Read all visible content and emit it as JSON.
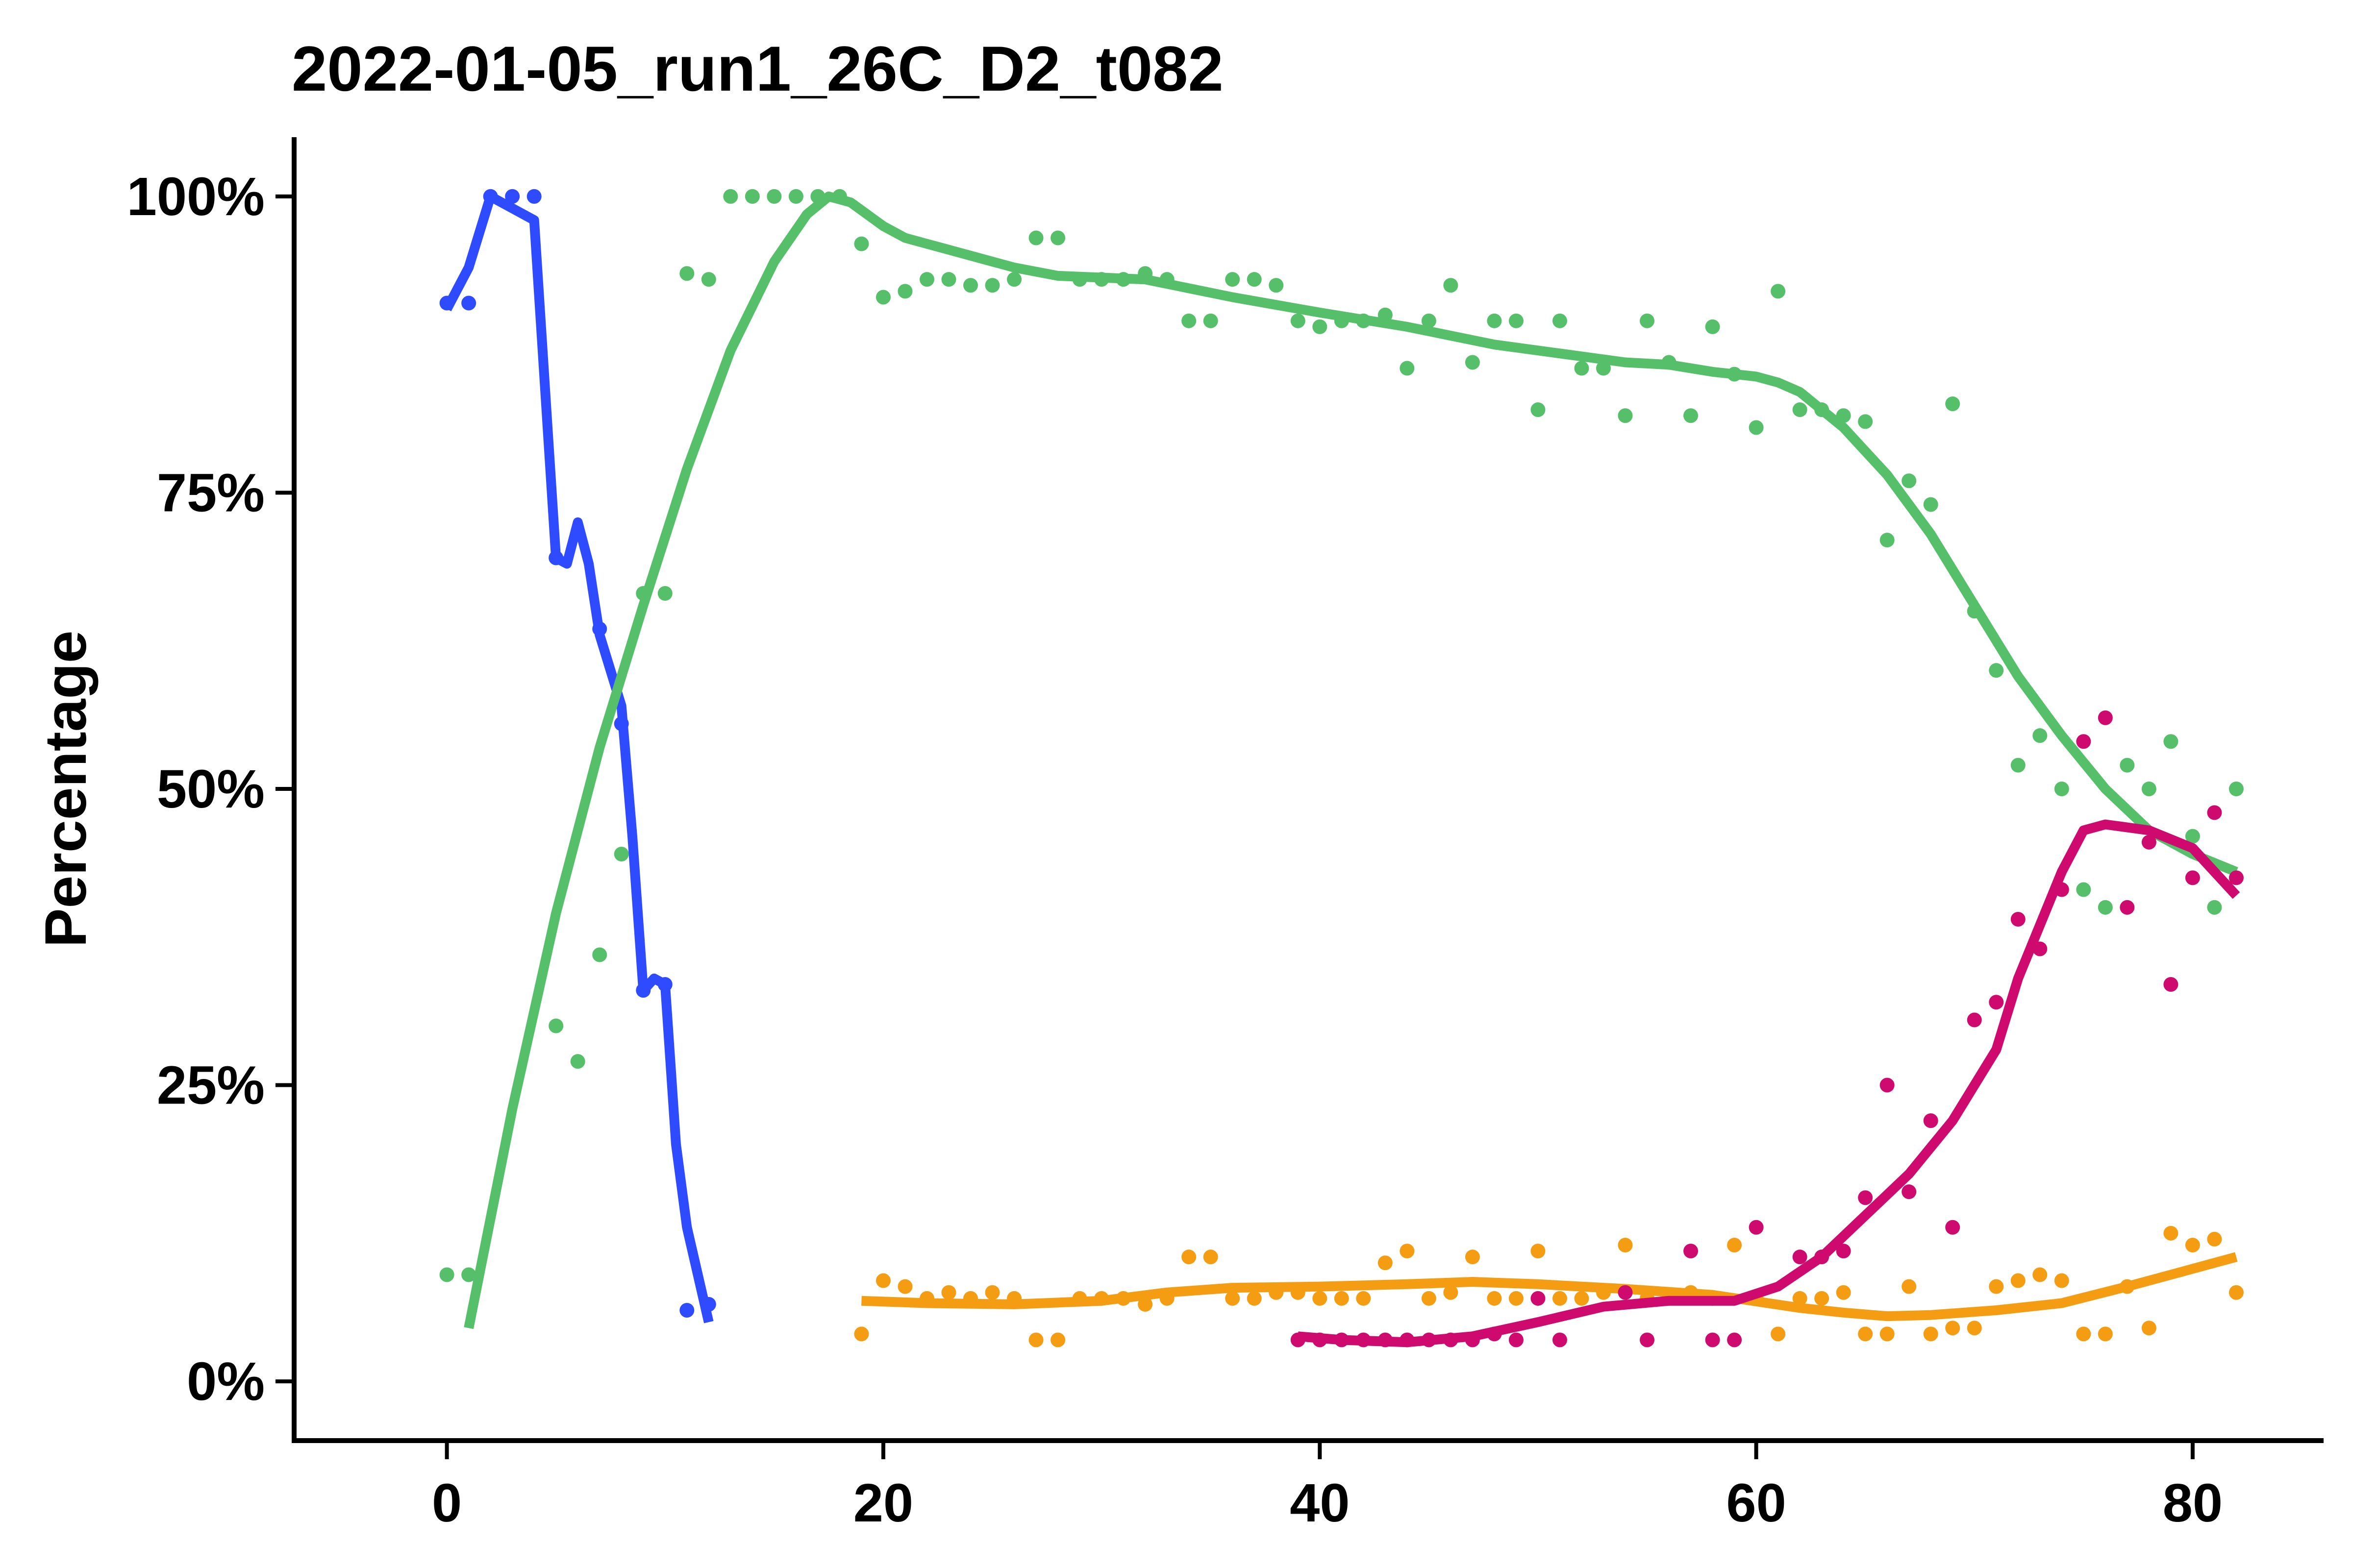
{
  "chart_data": {
    "type": "scatter",
    "title": "2022-01-05_run1_26C_D2_t082",
    "xlabel": "",
    "ylabel": "Percentage",
    "xlim": [
      -7,
      86
    ],
    "ylim": [
      -5,
      105
    ],
    "x_ticks": [
      0,
      20,
      40,
      60,
      80
    ],
    "y_ticks": [
      0,
      25,
      50,
      75,
      100
    ],
    "y_tick_labels": [
      "0%",
      "25%",
      "50%",
      "75%",
      "100%"
    ],
    "grid": false,
    "legend": "none",
    "series": [
      {
        "color": "#2f4bff",
        "points": [
          [
            0,
            91
          ],
          [
            1,
            91
          ],
          [
            2,
            100
          ],
          [
            3,
            100
          ],
          [
            4,
            100
          ],
          [
            5,
            69.5
          ],
          [
            6,
            71.5
          ],
          [
            7,
            63.5
          ],
          [
            8,
            55.5
          ],
          [
            9,
            33
          ],
          [
            10,
            33.5
          ],
          [
            11,
            6
          ],
          [
            12,
            6.5
          ]
        ],
        "smooth": [
          [
            0,
            90.5
          ],
          [
            1,
            94
          ],
          [
            2,
            100
          ],
          [
            4,
            98
          ],
          [
            5,
            69.5
          ],
          [
            5.5,
            69
          ],
          [
            6,
            72.5
          ],
          [
            6.5,
            69
          ],
          [
            7,
            63
          ],
          [
            8,
            57
          ],
          [
            8.5,
            46
          ],
          [
            9,
            33
          ],
          [
            9.5,
            34
          ],
          [
            10,
            33.5
          ],
          [
            10.5,
            20
          ],
          [
            11,
            13
          ],
          [
            12,
            5
          ]
        ]
      },
      {
        "color": "#55bf6a",
        "points": [
          [
            0,
            9
          ],
          [
            1,
            9
          ],
          [
            5,
            30
          ],
          [
            6,
            27
          ],
          [
            7,
            36
          ],
          [
            8,
            44.5
          ],
          [
            9,
            66.5
          ],
          [
            10,
            66.5
          ],
          [
            11,
            93.5
          ],
          [
            12,
            93
          ],
          [
            13,
            100
          ],
          [
            14,
            100
          ],
          [
            15,
            100
          ],
          [
            16,
            100
          ],
          [
            17,
            100
          ],
          [
            18,
            100
          ],
          [
            19,
            96
          ],
          [
            20,
            91.5
          ],
          [
            21,
            92
          ],
          [
            22,
            93
          ],
          [
            23,
            93
          ],
          [
            24,
            92.5
          ],
          [
            25,
            92.5
          ],
          [
            26,
            93
          ],
          [
            27,
            96.5
          ],
          [
            28,
            96.5
          ],
          [
            29,
            93
          ],
          [
            30,
            93
          ],
          [
            31,
            93
          ],
          [
            32,
            93.5
          ],
          [
            33,
            93
          ],
          [
            34,
            89.5
          ],
          [
            35,
            89.5
          ],
          [
            36,
            93
          ],
          [
            37,
            93
          ],
          [
            38,
            92.5
          ],
          [
            39,
            89.5
          ],
          [
            40,
            89
          ],
          [
            41,
            89.5
          ],
          [
            42,
            89.5
          ],
          [
            43,
            90
          ],
          [
            44,
            85.5
          ],
          [
            45,
            89.5
          ],
          [
            46,
            92.5
          ],
          [
            47,
            86
          ],
          [
            48,
            89.5
          ],
          [
            49,
            89.5
          ],
          [
            50,
            82
          ],
          [
            51,
            89.5
          ],
          [
            52,
            85.5
          ],
          [
            53,
            85.5
          ],
          [
            54,
            81.5
          ],
          [
            55,
            89.5
          ],
          [
            56,
            86
          ],
          [
            57,
            81.5
          ],
          [
            58,
            89
          ],
          [
            59,
            85
          ],
          [
            60,
            80.5
          ],
          [
            61,
            92
          ],
          [
            62,
            82
          ],
          [
            63,
            82
          ],
          [
            64,
            81.5
          ],
          [
            65,
            81
          ],
          [
            66,
            71
          ],
          [
            67,
            76
          ],
          [
            68,
            74
          ],
          [
            69,
            82.5
          ],
          [
            70,
            65
          ],
          [
            71,
            60
          ],
          [
            72,
            52
          ],
          [
            73,
            54.5
          ],
          [
            74,
            50
          ],
          [
            75,
            41.5
          ],
          [
            76,
            40
          ],
          [
            77,
            52
          ],
          [
            78,
            50
          ],
          [
            79,
            54
          ],
          [
            80,
            46
          ],
          [
            81,
            40
          ],
          [
            82,
            50
          ]
        ],
        "smooth": [
          [
            1,
            4.5
          ],
          [
            3,
            23
          ],
          [
            5,
            39.5
          ],
          [
            7,
            53.5
          ],
          [
            9,
            65.5
          ],
          [
            11,
            77
          ],
          [
            13,
            87
          ],
          [
            15,
            94.5
          ],
          [
            16.5,
            98.5
          ],
          [
            17.5,
            100
          ],
          [
            18.5,
            99.5
          ],
          [
            20,
            97.5
          ],
          [
            21,
            96.5
          ],
          [
            22,
            96
          ],
          [
            24,
            95
          ],
          [
            26,
            94
          ],
          [
            28,
            93.3
          ],
          [
            32,
            93
          ],
          [
            36,
            91.5
          ],
          [
            40,
            90.2
          ],
          [
            44,
            89
          ],
          [
            48,
            87.5
          ],
          [
            52,
            86.5
          ],
          [
            54,
            86
          ],
          [
            56,
            85.8
          ],
          [
            58,
            85.2
          ],
          [
            60,
            84.8
          ],
          [
            61,
            84.3
          ],
          [
            62,
            83.5
          ],
          [
            63,
            82
          ],
          [
            64,
            80.5
          ],
          [
            66,
            76.5
          ],
          [
            68,
            71.5
          ],
          [
            70,
            65.5
          ],
          [
            72,
            59.5
          ],
          [
            74,
            54.5
          ],
          [
            76,
            50
          ],
          [
            78,
            46.5
          ],
          [
            80,
            44.5
          ],
          [
            82,
            43
          ]
        ]
      },
      {
        "color": "#f59d12",
        "points": [
          [
            19,
            4
          ],
          [
            20,
            8.5
          ],
          [
            21,
            8
          ],
          [
            22,
            7
          ],
          [
            23,
            7.5
          ],
          [
            24,
            7
          ],
          [
            25,
            7.5
          ],
          [
            26,
            7
          ],
          [
            27,
            3.5
          ],
          [
            28,
            3.5
          ],
          [
            29,
            7
          ],
          [
            30,
            7
          ],
          [
            31,
            7
          ],
          [
            32,
            6.5
          ],
          [
            33,
            7
          ],
          [
            34,
            10.5
          ],
          [
            35,
            10.5
          ],
          [
            36,
            7
          ],
          [
            37,
            7
          ],
          [
            38,
            7.5
          ],
          [
            39,
            7.5
          ],
          [
            40,
            7
          ],
          [
            41,
            7
          ],
          [
            42,
            7
          ],
          [
            43,
            10
          ],
          [
            44,
            11
          ],
          [
            45,
            7
          ],
          [
            46,
            7.5
          ],
          [
            47,
            10.5
          ],
          [
            48,
            7
          ],
          [
            49,
            7
          ],
          [
            50,
            11
          ],
          [
            51,
            7
          ],
          [
            52,
            7
          ],
          [
            53,
            7.5
          ],
          [
            54,
            11.5
          ],
          [
            55,
            7
          ],
          [
            56,
            7
          ],
          [
            57,
            7.5
          ],
          [
            58,
            7
          ],
          [
            59,
            11.5
          ],
          [
            60,
            7
          ],
          [
            61,
            4
          ],
          [
            62,
            7
          ],
          [
            63,
            7
          ],
          [
            64,
            7.5
          ],
          [
            65,
            4
          ],
          [
            66,
            4
          ],
          [
            67,
            8
          ],
          [
            68,
            4
          ],
          [
            69,
            4.5
          ],
          [
            70,
            4.5
          ],
          [
            71,
            8
          ],
          [
            72,
            8.5
          ],
          [
            73,
            9
          ],
          [
            74,
            8.5
          ],
          [
            75,
            4
          ],
          [
            76,
            4
          ],
          [
            77,
            8
          ],
          [
            78,
            4.5
          ],
          [
            79,
            12.5
          ],
          [
            80,
            11.5
          ],
          [
            81,
            12
          ],
          [
            82,
            7.5
          ]
        ],
        "smooth": [
          [
            19,
            6.8
          ],
          [
            22,
            6.6
          ],
          [
            26,
            6.5
          ],
          [
            30,
            6.8
          ],
          [
            33,
            7.5
          ],
          [
            36,
            7.9
          ],
          [
            40,
            8
          ],
          [
            44,
            8.2
          ],
          [
            47,
            8.4
          ],
          [
            50,
            8.2
          ],
          [
            54,
            7.8
          ],
          [
            58,
            7.3
          ],
          [
            62,
            6.2
          ],
          [
            64,
            5.8
          ],
          [
            66,
            5.5
          ],
          [
            68,
            5.6
          ],
          [
            71,
            6
          ],
          [
            74,
            6.6
          ],
          [
            77,
            8
          ],
          [
            80,
            9.5
          ],
          [
            82,
            10.5
          ]
        ]
      },
      {
        "color": "#cf0a6f",
        "points": [
          [
            39,
            3.5
          ],
          [
            40,
            3.5
          ],
          [
            41,
            3.5
          ],
          [
            42,
            3.5
          ],
          [
            43,
            3.5
          ],
          [
            44,
            3.5
          ],
          [
            45,
            3.5
          ],
          [
            46,
            3.5
          ],
          [
            47,
            3.5
          ],
          [
            48,
            4
          ],
          [
            49,
            3.5
          ],
          [
            50,
            7
          ],
          [
            51,
            3.5
          ],
          [
            54,
            7.5
          ],
          [
            55,
            3.5
          ],
          [
            57,
            11
          ],
          [
            58,
            3.5
          ],
          [
            59,
            3.5
          ],
          [
            60,
            13
          ],
          [
            62,
            10.5
          ],
          [
            63,
            10.5
          ],
          [
            64,
            11
          ],
          [
            65,
            15.5
          ],
          [
            66,
            25
          ],
          [
            67,
            16
          ],
          [
            68,
            22
          ],
          [
            69,
            13
          ],
          [
            70,
            30.5
          ],
          [
            71,
            32
          ],
          [
            72,
            39
          ],
          [
            73,
            36.5
          ],
          [
            74,
            41.5
          ],
          [
            75,
            54
          ],
          [
            76,
            56
          ],
          [
            77,
            40
          ],
          [
            78,
            45.5
          ],
          [
            79,
            33.5
          ],
          [
            80,
            42.5
          ],
          [
            81,
            48
          ],
          [
            82,
            42.5
          ]
        ],
        "smooth": [
          [
            39,
            3.8
          ],
          [
            41,
            3.5
          ],
          [
            44,
            3.3
          ],
          [
            47,
            3.8
          ],
          [
            50,
            5
          ],
          [
            53,
            6.3
          ],
          [
            56,
            6.8
          ],
          [
            59,
            6.8
          ],
          [
            61,
            8
          ],
          [
            63,
            10.5
          ],
          [
            65,
            14
          ],
          [
            67,
            17.5
          ],
          [
            69,
            22
          ],
          [
            71,
            28
          ],
          [
            72,
            34
          ],
          [
            73,
            38.5
          ],
          [
            74,
            43
          ],
          [
            75,
            46.5
          ],
          [
            76,
            47
          ],
          [
            78,
            46.5
          ],
          [
            80,
            45
          ],
          [
            82,
            41
          ]
        ]
      }
    ]
  }
}
